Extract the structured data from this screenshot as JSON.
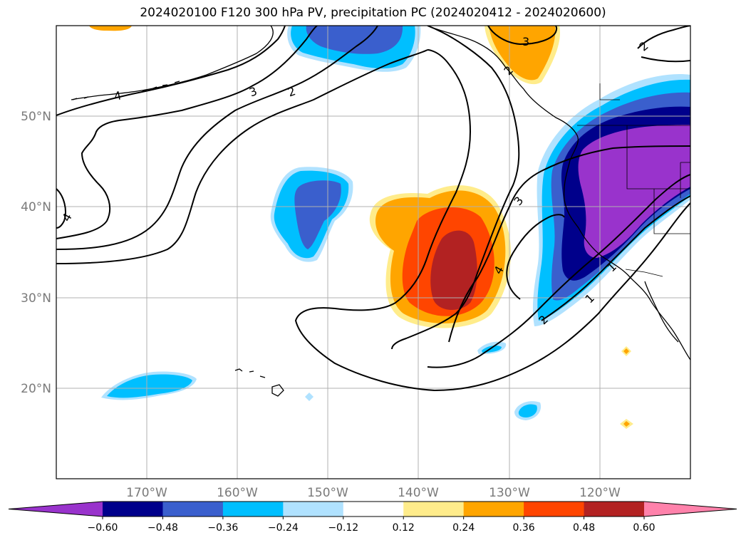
{
  "title": "2024020100 F120 300 hPa PV, precipitation PC (2024020412 - 2024020600)",
  "map": {
    "region_lon": [
      -180,
      -110
    ],
    "region_lat": [
      10,
      60
    ],
    "lat_labels": [
      "50°N",
      "40°N",
      "30°N",
      "20°N"
    ],
    "lon_labels": [
      "170°W",
      "160°W",
      "150°W",
      "140°W",
      "130°W",
      "120°W"
    ],
    "gridlines": true
  },
  "contours": {
    "field": "300 hPa PV",
    "labels": [
      "4",
      "3",
      "2",
      "3",
      "2",
      "4",
      "3",
      "2",
      "1",
      "1",
      "2",
      "4"
    ]
  },
  "colorbar": {
    "ticks": [
      "−0.60",
      "−0.48",
      "−0.36",
      "−0.24",
      "−0.12",
      "0.12",
      "0.24",
      "0.36",
      "0.48",
      "0.60"
    ],
    "colors": [
      "#9933cc",
      "#00008b",
      "#3a5fcd",
      "#00bfff",
      "#b0e2ff",
      "#ffffff",
      "#ffec8b",
      "#ffa500",
      "#ff4500",
      "#b22222",
      "#ff82ab"
    ],
    "extend": "both"
  }
}
